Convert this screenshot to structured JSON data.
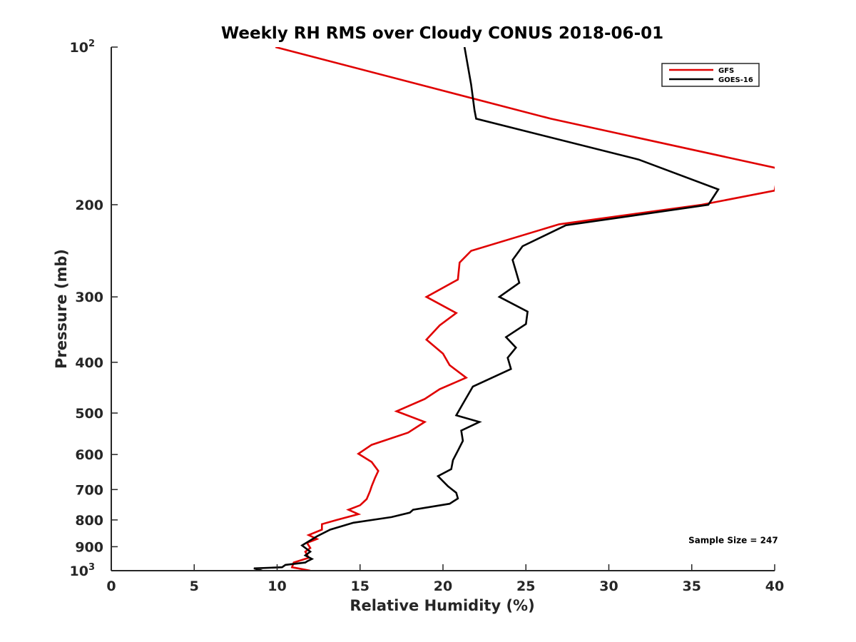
{
  "chart_data": {
    "type": "line",
    "title": "Weekly RH RMS over Cloudy CONUS 2018-06-01",
    "xlabel": "Relative Humidity (%)",
    "ylabel": "Pressure (mb)",
    "xlim": [
      0,
      40
    ],
    "ylim": [
      100,
      1000
    ],
    "y_scale": "log",
    "y_reversed": true,
    "x_ticks": [
      "0",
      "5",
      "10",
      "15",
      "20",
      "25",
      "30",
      "35",
      "40"
    ],
    "y_ticks": [
      {
        "value": 100,
        "label": "10",
        "sup": "2"
      },
      {
        "value": 200,
        "label": "200"
      },
      {
        "value": 300,
        "label": "300"
      },
      {
        "value": 400,
        "label": "400"
      },
      {
        "value": 500,
        "label": "500"
      },
      {
        "value": 600,
        "label": "600"
      },
      {
        "value": 700,
        "label": "700"
      },
      {
        "value": 800,
        "label": "800"
      },
      {
        "value": 900,
        "label": "900"
      },
      {
        "value": 1000,
        "label": "10",
        "sup": "3"
      }
    ],
    "grid": false,
    "legend_position": "top-right",
    "series": [
      {
        "name": "GFS",
        "color": "#e00000",
        "x": [
          9.9,
          26.5,
          40.0,
          40.2,
          40.0,
          35.6,
          27.0,
          21.7,
          21.0,
          20.9,
          19.0,
          20.8,
          19.8,
          19.0,
          20.0,
          20.4,
          21.4,
          19.8,
          18.9,
          17.2,
          18.9,
          17.9,
          15.7,
          14.9,
          15.7,
          16.1,
          15.9,
          15.7,
          15.6,
          15.4,
          15.0,
          14.3,
          14.9,
          13.6,
          12.7,
          12.7,
          11.9,
          12.4,
          11.8,
          12.0,
          11.7,
          11.9,
          11.0,
          10.9,
          12.0
        ],
        "y": [
          100,
          137,
          170,
          172,
          188,
          200,
          218,
          245,
          258,
          278,
          300,
          322,
          340,
          362,
          385,
          405,
          428,
          450,
          470,
          496,
          520,
          545,
          575,
          598,
          620,
          645,
          665,
          690,
          705,
          730,
          750,
          765,
          780,
          800,
          815,
          835,
          855,
          870,
          885,
          905,
          920,
          945,
          965,
          985,
          1000
        ]
      },
      {
        "name": "GOES-16",
        "color": "#000000",
        "x": [
          21.3,
          21.7,
          21.9,
          22.0,
          31.8,
          36.6,
          36.0,
          27.4,
          24.8,
          24.2,
          24.4,
          24.6,
          23.4,
          25.1,
          25.0,
          23.8,
          24.4,
          23.9,
          24.1,
          21.8,
          21.2,
          20.8,
          22.2,
          21.1,
          21.2,
          20.9,
          20.6,
          20.5,
          19.7,
          20.3,
          20.8,
          20.9,
          20.4,
          18.2,
          18.0,
          16.9,
          14.6,
          13.2,
          12.4,
          11.5,
          12.0,
          11.7,
          12.1,
          11.8,
          11.7,
          10.5,
          10.3,
          8.6,
          9.1
        ],
        "y": [
          100,
          118,
          132,
          137,
          164,
          187,
          200,
          219,
          240,
          255,
          268,
          282,
          300,
          320,
          338,
          358,
          375,
          392,
          412,
          445,
          480,
          505,
          520,
          540,
          565,
          590,
          615,
          640,
          660,
          690,
          710,
          728,
          745,
          765,
          775,
          790,
          810,
          835,
          860,
          895,
          920,
          935,
          950,
          960,
          965,
          975,
          985,
          990,
          1000
        ]
      }
    ],
    "annotations": [
      {
        "text": "Sample Size = 247",
        "x": 37.5,
        "y": 897
      }
    ]
  }
}
